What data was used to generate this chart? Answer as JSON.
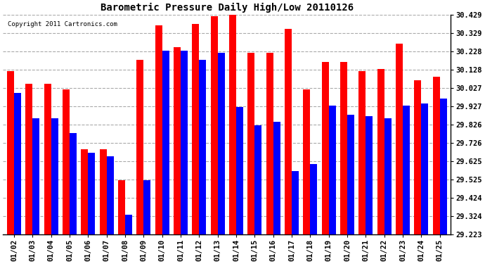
{
  "title": "Barometric Pressure Daily High/Low 20110126",
  "copyright": "Copyright 2011 Cartronics.com",
  "dates": [
    "01/02",
    "01/03",
    "01/04",
    "01/05",
    "01/06",
    "01/07",
    "01/08",
    "01/09",
    "01/10",
    "01/11",
    "01/12",
    "01/13",
    "01/14",
    "01/15",
    "01/16",
    "01/17",
    "01/18",
    "01/19",
    "01/20",
    "01/21",
    "01/22",
    "01/23",
    "01/24",
    "01/25"
  ],
  "highs": [
    30.12,
    30.05,
    30.05,
    30.02,
    29.69,
    29.69,
    29.52,
    30.18,
    30.37,
    30.25,
    30.38,
    30.42,
    30.43,
    30.22,
    30.22,
    30.35,
    30.02,
    30.17,
    30.17,
    30.12,
    30.13,
    30.27,
    30.07,
    30.09
  ],
  "lows": [
    30.0,
    29.86,
    29.86,
    29.78,
    29.67,
    29.65,
    29.33,
    29.52,
    30.23,
    30.23,
    30.18,
    30.22,
    29.92,
    29.82,
    29.84,
    29.57,
    29.61,
    29.93,
    29.88,
    29.87,
    29.86,
    29.93,
    29.94,
    29.97
  ],
  "high_color": "#ff0000",
  "low_color": "#0000ff",
  "bg_color": "#ffffff",
  "grid_color": "#aaaaaa",
  "ymin": 29.223,
  "ymax": 30.429,
  "yticks": [
    29.223,
    29.324,
    29.424,
    29.525,
    29.625,
    29.726,
    29.826,
    29.927,
    30.027,
    30.128,
    30.228,
    30.329,
    30.429
  ],
  "ytick_labels": [
    "29.223",
    "29.324",
    "29.424",
    "29.525",
    "29.625",
    "29.726",
    "29.826",
    "29.927",
    "30.027",
    "30.128",
    "30.228",
    "30.329",
    "30.429"
  ]
}
